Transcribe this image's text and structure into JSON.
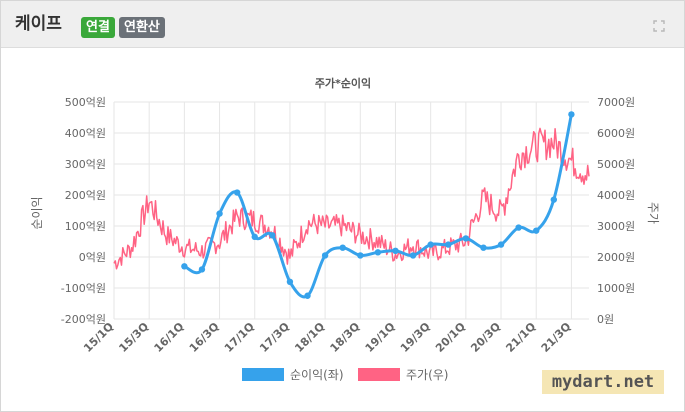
{
  "header": {
    "title": "케이프",
    "badge_consolidated": "연결",
    "badge_annualized": "연환산"
  },
  "watermark": "mydart.net",
  "chart_data": {
    "type": "line",
    "title": "주가*순이익",
    "ylabel_left": "순이익",
    "ylabel_right": "주가",
    "legend_position": "bottom",
    "grid": true,
    "x_categories": [
      "15/1Q",
      "15/2Q",
      "15/3Q",
      "15/4Q",
      "16/1Q",
      "16/2Q",
      "16/3Q",
      "16/4Q",
      "17/1Q",
      "17/2Q",
      "17/3Q",
      "17/4Q",
      "18/1Q",
      "18/2Q",
      "18/3Q",
      "18/4Q",
      "19/1Q",
      "19/2Q",
      "19/3Q",
      "19/4Q",
      "20/1Q",
      "20/2Q",
      "20/3Q",
      "20/4Q",
      "21/1Q",
      "21/2Q",
      "21/3Q",
      "21/4Q"
    ],
    "x_tick_labels": [
      "15/1Q",
      "15/3Q",
      "16/1Q",
      "16/3Q",
      "17/1Q",
      "17/3Q",
      "18/1Q",
      "18/3Q",
      "19/1Q",
      "19/3Q",
      "20/1Q",
      "20/3Q",
      "21/1Q",
      "21/3Q"
    ],
    "y_left": {
      "min": -200,
      "max": 500,
      "step": 100,
      "unit": "억원",
      "ticks": [
        "500억원",
        "400억원",
        "300억원",
        "200억원",
        "100억원",
        "0억원",
        "-100억원",
        "-200억원"
      ]
    },
    "y_right": {
      "min": 0,
      "max": 7000,
      "step": 1000,
      "unit": "원",
      "ticks": [
        "7000원",
        "6000원",
        "5000원",
        "4000원",
        "3000원",
        "2000원",
        "1000원",
        "0원"
      ]
    },
    "series": [
      {
        "name": "순이익(좌)",
        "axis": "left",
        "color": "#36a2eb",
        "x": [
          "16/1Q",
          "16/2Q",
          "16/3Q",
          "16/4Q",
          "17/1Q",
          "17/2Q",
          "17/3Q",
          "17/4Q",
          "18/1Q",
          "18/2Q",
          "18/3Q",
          "18/4Q",
          "19/1Q",
          "19/2Q",
          "19/3Q",
          "19/4Q",
          "20/1Q",
          "20/2Q",
          "20/3Q",
          "20/4Q",
          "21/1Q",
          "21/2Q",
          "21/3Q"
        ],
        "values": [
          -30,
          -40,
          140,
          208,
          65,
          70,
          -80,
          -125,
          5,
          30,
          5,
          15,
          20,
          5,
          40,
          40,
          60,
          30,
          40,
          95,
          85,
          185,
          460
        ]
      },
      {
        "name": "주가(우)",
        "axis": "right",
        "color": "#ff6384",
        "x": [
          "15/1Q",
          "15/2Q",
          "15/3Q",
          "15/4Q",
          "16/1Q",
          "16/2Q",
          "16/3Q",
          "16/4Q",
          "17/1Q",
          "17/2Q",
          "17/3Q",
          "17/4Q",
          "18/1Q",
          "18/2Q",
          "18/3Q",
          "18/4Q",
          "19/1Q",
          "19/2Q",
          "19/3Q",
          "19/4Q",
          "20/1Q",
          "20/2Q",
          "20/3Q",
          "20/4Q",
          "21/1Q",
          "21/2Q",
          "21/3Q",
          "21/4Q"
        ],
        "values": [
          1800,
          2300,
          3800,
          2700,
          2300,
          2200,
          2500,
          3300,
          3200,
          2900,
          2000,
          3100,
          3000,
          3000,
          2700,
          2500,
          2100,
          2400,
          2100,
          2300,
          2500,
          3900,
          3400,
          5300,
          5600,
          5700,
          5100,
          4600
        ]
      }
    ]
  }
}
